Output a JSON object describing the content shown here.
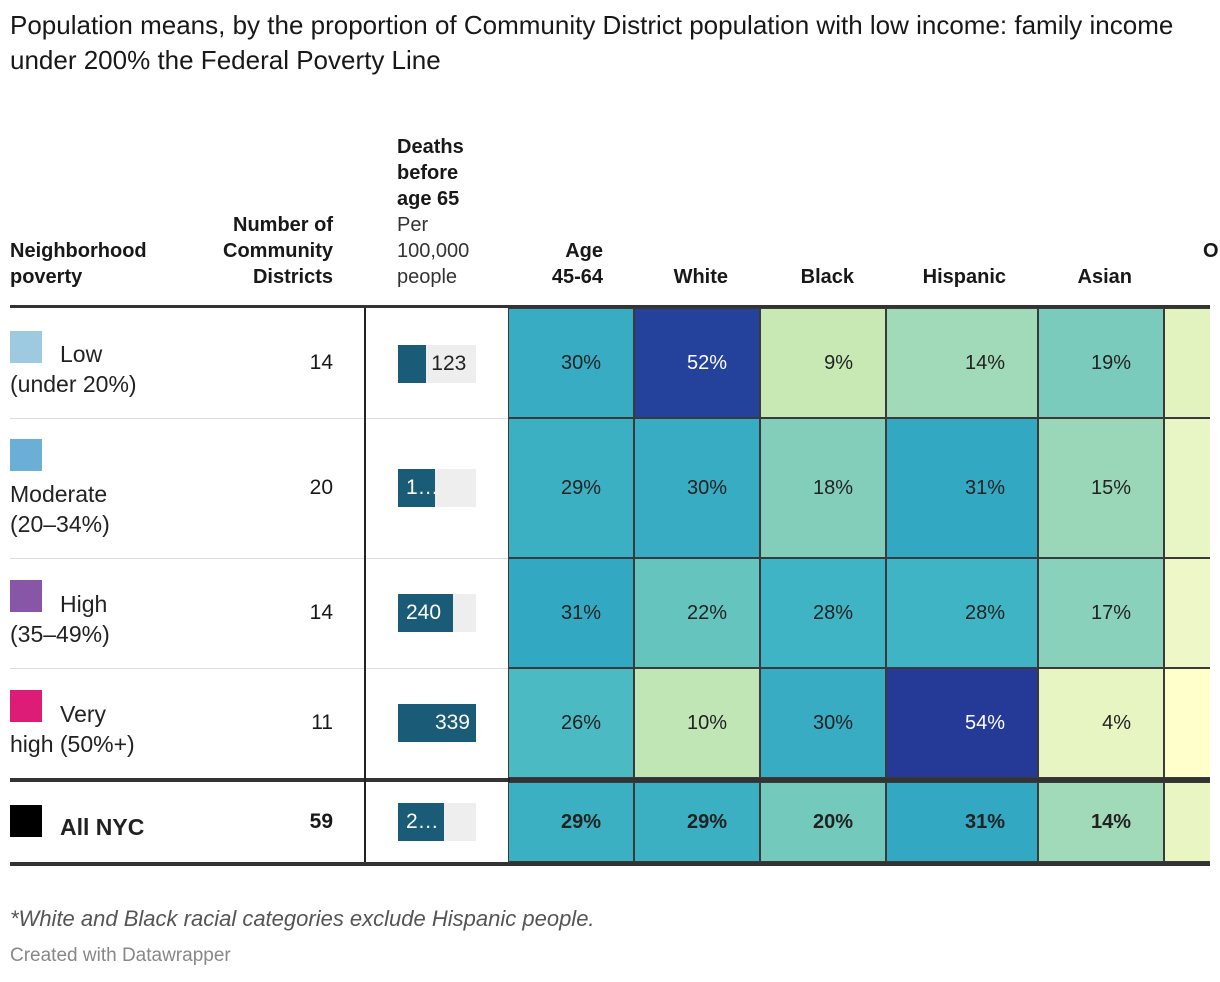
{
  "title": "Population means, by the proportion of Community District population with low income: family income under 200% the Federal Poverty Line",
  "headers": {
    "neighborhood": [
      "Neighborhood",
      "poverty"
    ],
    "districts": [
      "Number of",
      "Community",
      "Districts"
    ],
    "deaths_bold": [
      "Deaths",
      "before",
      "age 65"
    ],
    "deaths_sub": [
      "Per",
      "100,000",
      "people"
    ],
    "age": [
      "Age",
      "45-64"
    ],
    "white": "White",
    "black": "Black",
    "hispanic": "Hispanic",
    "asian": "Asian",
    "clipped": "O"
  },
  "rows": [
    {
      "label_line1": "Low",
      "label_line2": "(under 20%)",
      "swatch_color": "#9ecae1",
      "districts": "14",
      "deaths": 123,
      "deaths_label": "123",
      "age": "30%",
      "white": "52%",
      "black": "9%",
      "hispanic": "14%",
      "asian": "19%"
    },
    {
      "label_line1": "",
      "label_line2": "Moderate",
      "label_line3": "(20–34%)",
      "swatch_color": "#6baed6",
      "districts": "20",
      "deaths": 160,
      "deaths_label": "1…",
      "age": "29%",
      "white": "30%",
      "black": "18%",
      "hispanic": "31%",
      "asian": "15%"
    },
    {
      "label_line1": "High",
      "label_line2": "(35–49%)",
      "swatch_color": "#8856a7",
      "districts": "14",
      "deaths": 240,
      "deaths_label": "240",
      "age": "31%",
      "white": "22%",
      "black": "28%",
      "hispanic": "28%",
      "asian": "17%"
    },
    {
      "label_line1": "Very",
      "label_line2": "high (50%+)",
      "swatch_color": "#dd1c77",
      "districts": "11",
      "deaths": 339,
      "deaths_label": "339",
      "age": "26%",
      "white": "10%",
      "black": "30%",
      "hispanic": "54%",
      "asian": "4%"
    }
  ],
  "total": {
    "label": "All NYC",
    "swatch_color": "#000000",
    "districts": "59",
    "deaths": 200,
    "deaths_label": "2…",
    "age": "29%",
    "white": "29%",
    "black": "20%",
    "hispanic": "31%",
    "asian": "14%"
  },
  "chart_data": {
    "type": "table",
    "title": "Population means, by the proportion of Community District population with low income: family income under 200% the Federal Poverty Line",
    "columns": [
      "Neighborhood poverty",
      "Number of Community Districts",
      "Deaths before age 65 per 100,000 people",
      "Age 45-64",
      "White",
      "Black",
      "Hispanic",
      "Asian"
    ],
    "categories": [
      "Low (under 20%)",
      "Moderate (20–34%)",
      "High (35–49%)",
      "Very high (50%+)",
      "All NYC"
    ],
    "series": [
      {
        "name": "Number of Community Districts",
        "values": [
          14,
          20,
          14,
          11,
          59
        ]
      },
      {
        "name": "Deaths before age 65 per 100,000",
        "values": [
          123,
          160,
          240,
          339,
          200
        ]
      },
      {
        "name": "Age 45-64 (%)",
        "values": [
          30,
          29,
          31,
          26,
          29
        ]
      },
      {
        "name": "White (%)",
        "values": [
          52,
          30,
          22,
          10,
          29
        ]
      },
      {
        "name": "Black (%)",
        "values": [
          9,
          18,
          28,
          30,
          20
        ]
      },
      {
        "name": "Hispanic (%)",
        "values": [
          14,
          31,
          28,
          54,
          31
        ]
      },
      {
        "name": "Asian (%)",
        "values": [
          19,
          15,
          17,
          4,
          14
        ]
      }
    ],
    "bar_max": 339,
    "heatmap_scale": [
      "#ffffcc",
      "#c7e9b4",
      "#7fcdbb",
      "#41b6c4",
      "#1d91c0",
      "#225ea8",
      "#253494"
    ]
  },
  "clipped_column_colors": [
    "#e3f3c0",
    "#e8f5c5",
    "#edf7c8",
    "#ffffcc",
    "#e9f6c4"
  ],
  "footnote": "*White and Black racial categories exclude Hispanic people.",
  "credit": "Created with Datawrapper"
}
